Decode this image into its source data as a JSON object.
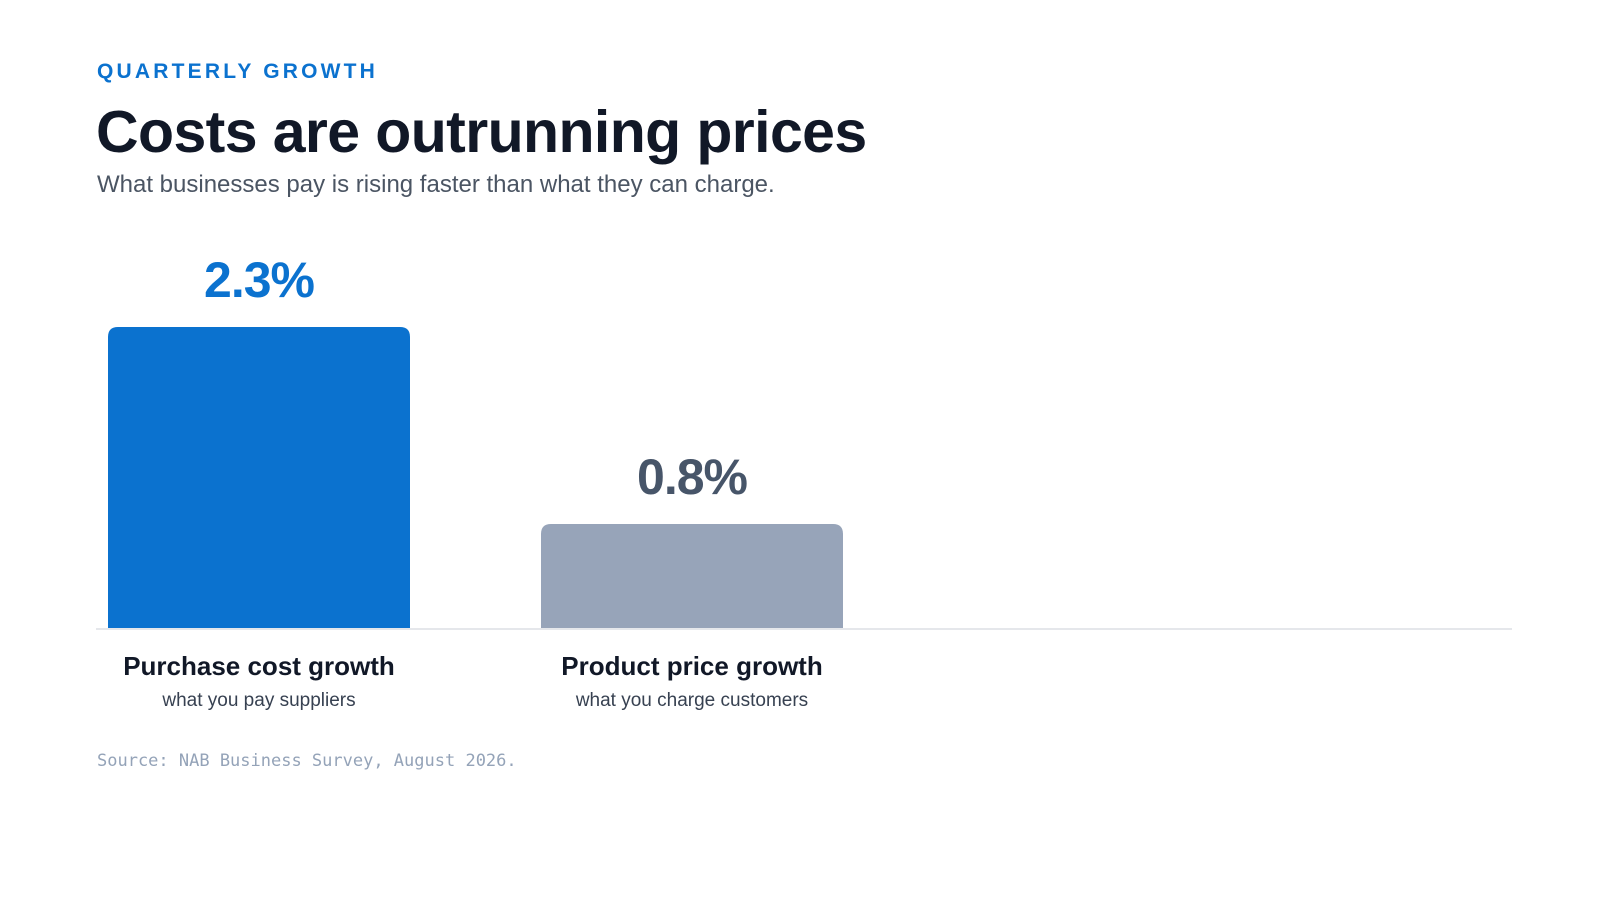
{
  "eyebrow": "QUARTERLY GROWTH",
  "title": "Costs are outrunning prices",
  "subtitle": "What businesses pay is rising faster than what they can charge.",
  "source": "Source: NAB Business Survey, August 2026.",
  "colors": {
    "accent": "#0b72cf",
    "muted_bar": "#97a4b9",
    "muted_label": "#475569",
    "baseline": "#e5e7eb",
    "category_text": "#111827",
    "sub_text": "#374151"
  },
  "chart_data": {
    "type": "bar",
    "unit": "%",
    "ylim": [
      0,
      2.3
    ],
    "grid": false,
    "categories": [
      "Purchase cost growth",
      "Product price growth"
    ],
    "category_notes": [
      "what you pay suppliers",
      "what you charge customers"
    ],
    "values": [
      2.3,
      0.8
    ],
    "value_labels": [
      "2.3%",
      "0.8%"
    ],
    "bar_colors": [
      "#0b72cf",
      "#97a4b9"
    ],
    "value_label_colors": [
      "#0b72cf",
      "#475569"
    ]
  }
}
